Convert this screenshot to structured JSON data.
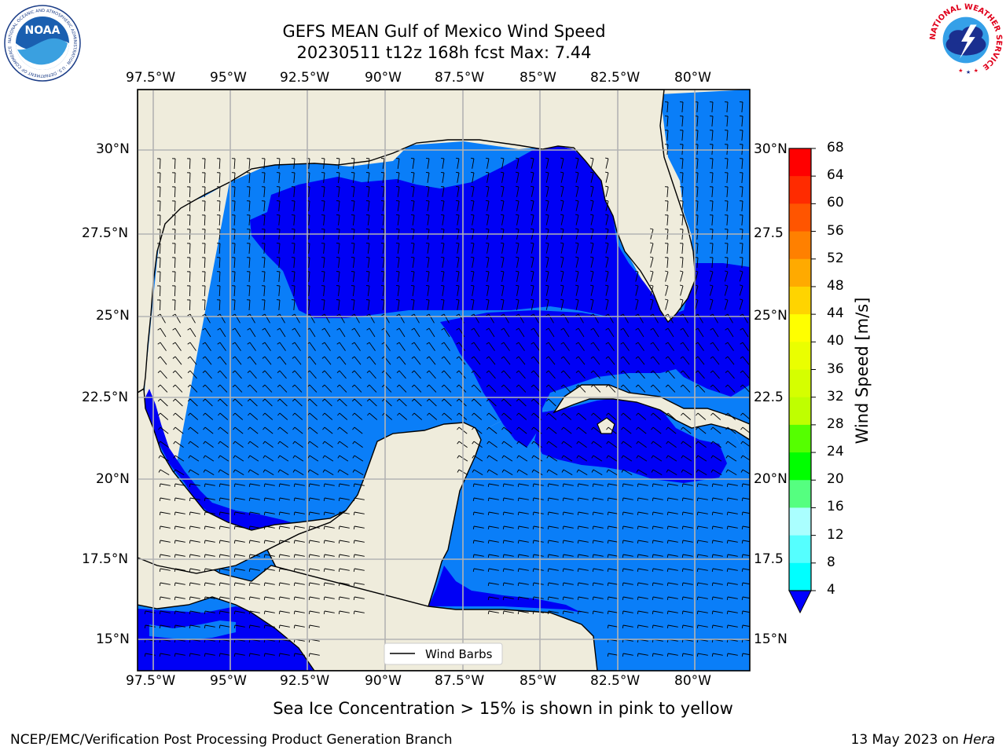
{
  "title": {
    "line1": "GEFS MEAN Gulf of Mexico Wind Speed",
    "line2": "20230511 t12z 168h fcst   Max: 7.44"
  },
  "map": {
    "lon_labels": [
      "97.5°W",
      "95°W",
      "92.5°W",
      "90°W",
      "87.5°W",
      "85°W",
      "82.5°W",
      "80°W"
    ],
    "lat_labels_left": [
      "30°N",
      "27.5°N",
      "25°N",
      "22.5°N",
      "20°N",
      "17.5°N",
      "15°N"
    ],
    "lat_labels_right": [
      "30°N",
      "27.5",
      "25°N",
      "22.5",
      "20°N",
      "17.5",
      "15°N"
    ],
    "legend": {
      "label": "Wind Barbs"
    },
    "colors": {
      "land": "#efecdc",
      "ocean_dark": "#0000f5",
      "ocean_light": "#0a7ef8",
      "grid": "#b3b3b3",
      "coast": "#000000"
    }
  },
  "colorbar": {
    "label": "Wind Speed [m/s]",
    "ticks": [
      "68",
      "64",
      "60",
      "56",
      "52",
      "48",
      "44",
      "40",
      "36",
      "32",
      "28",
      "24",
      "20",
      "16",
      "12",
      "8",
      "4"
    ],
    "colors": [
      "#ff0000",
      "#ff2b00",
      "#ff5500",
      "#ff8000",
      "#ffaa00",
      "#ffd400",
      "#ffff00",
      "#eaff00",
      "#d5ff00",
      "#bfff00",
      "#55ff00",
      "#00ff00",
      "#55ff80",
      "#aaffff",
      "#55ffff",
      "#00ffff",
      "#00f0ff",
      "#007fff"
    ],
    "under_color": "#0000ff"
  },
  "caption": "Sea Ice Concentration > 15% is shown in pink to yellow",
  "footer": {
    "left": "NCEP/EMC/Verification Post Processing Product Generation Branch",
    "right_date": "13 May 2023 on ",
    "right_machine": "Hera"
  },
  "logos": {
    "noaa_text": "NOAA",
    "noaa_ring_text": "NATIONAL OCEANIC AND ATMOSPHERIC ADMINISTRATION · U.S. DEPARTMENT OF COMMERCE",
    "nws_ring_text": "NATIONAL WEATHER SERVICE"
  }
}
